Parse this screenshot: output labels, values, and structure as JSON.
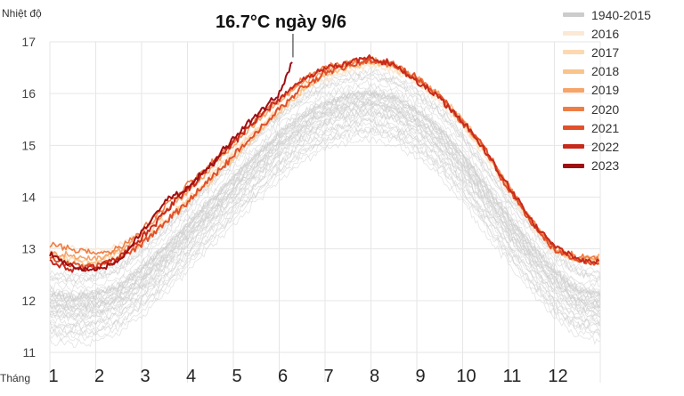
{
  "chart_data": {
    "type": "line",
    "title": "",
    "ylabel": "Nhiệt độ",
    "xlabel": "Tháng",
    "ylim": [
      11,
      17
    ],
    "yticks": [
      "11",
      "12",
      "13",
      "14",
      "15",
      "16",
      "17"
    ],
    "xticks": [
      "1",
      "2",
      "3",
      "4",
      "5",
      "6",
      "7",
      "8",
      "9",
      "10",
      "11",
      "12"
    ],
    "annotation": {
      "text": "16.7°C ngày 9/6",
      "month": 6.3,
      "value": 16.7
    },
    "series": [
      {
        "name": "1940-2015",
        "color": "#cccccc",
        "months": [
          1,
          1.5,
          2,
          2.5,
          3,
          3.5,
          4,
          4.5,
          5,
          5.5,
          6,
          6.5,
          7,
          7.5,
          8,
          8.5,
          9,
          9.5,
          10,
          10.5,
          11,
          11.5,
          12,
          12.5,
          13
        ],
        "values": [
          11.9,
          11.85,
          11.9,
          12.05,
          12.4,
          12.8,
          13.25,
          13.7,
          14.15,
          14.6,
          15.0,
          15.35,
          15.6,
          15.75,
          15.8,
          15.7,
          15.45,
          15.1,
          14.6,
          14.0,
          13.4,
          12.85,
          12.35,
          12.0,
          11.9
        ]
      },
      {
        "name": "2016",
        "color": "#fbe9d6",
        "months": [
          1,
          1.5,
          2,
          2.5,
          3,
          3.5,
          4,
          4.5,
          5,
          5.5,
          6,
          6.5,
          7,
          7.5,
          8,
          8.5,
          9,
          9.5,
          10,
          10.5,
          11,
          11.5,
          12,
          12.5,
          13
        ],
        "values": [
          13.05,
          13.0,
          12.95,
          13.05,
          13.3,
          13.7,
          14.1,
          14.5,
          14.9,
          15.3,
          15.7,
          16.05,
          16.3,
          16.45,
          16.55,
          16.45,
          16.2,
          15.85,
          15.35,
          14.8,
          14.1,
          13.45,
          12.9,
          12.8,
          12.85
        ]
      },
      {
        "name": "2017",
        "color": "#fcd9b0",
        "months": [
          1,
          1.5,
          2,
          2.5,
          3,
          3.5,
          4,
          4.5,
          5,
          5.5,
          6,
          6.5,
          7,
          7.5,
          8,
          8.5,
          9,
          9.5,
          10,
          10.5,
          11,
          11.5,
          12,
          12.5,
          13
        ],
        "values": [
          12.85,
          12.8,
          12.75,
          12.9,
          13.2,
          13.55,
          13.95,
          14.4,
          14.85,
          15.3,
          15.7,
          16.1,
          16.4,
          16.55,
          16.6,
          16.5,
          16.25,
          15.9,
          15.4,
          14.85,
          14.15,
          13.5,
          12.95,
          12.8,
          12.8
        ]
      },
      {
        "name": "2018",
        "color": "#f9c489",
        "months": [
          1,
          1.5,
          2,
          2.5,
          3,
          3.5,
          4,
          4.5,
          5,
          5.5,
          6,
          6.5,
          7,
          7.5,
          8,
          8.5,
          9,
          9.5,
          10,
          10.5,
          11,
          11.5,
          12,
          12.5,
          13
        ],
        "values": [
          12.9,
          12.75,
          12.7,
          12.85,
          13.1,
          13.5,
          13.9,
          14.3,
          14.75,
          15.2,
          15.65,
          16.05,
          16.35,
          16.5,
          16.6,
          16.55,
          16.3,
          15.95,
          15.5,
          14.9,
          14.2,
          13.55,
          13.0,
          12.8,
          12.75
        ]
      },
      {
        "name": "2019",
        "color": "#f6a46a",
        "months": [
          1,
          1.5,
          2,
          2.5,
          3,
          3.5,
          4,
          4.5,
          5,
          5.5,
          6,
          6.5,
          7,
          7.5,
          8,
          8.5,
          9,
          9.5,
          10,
          10.5,
          11,
          11.5,
          12,
          12.5,
          13
        ],
        "values": [
          12.95,
          12.85,
          12.8,
          12.95,
          13.3,
          13.7,
          14.1,
          14.55,
          15.0,
          15.45,
          15.85,
          16.2,
          16.45,
          16.6,
          16.65,
          16.55,
          16.3,
          15.95,
          15.45,
          14.9,
          14.2,
          13.55,
          13.0,
          12.8,
          12.85
        ]
      },
      {
        "name": "2020",
        "color": "#ee7d45",
        "months": [
          1,
          1.5,
          2,
          2.5,
          3,
          3.5,
          4,
          4.5,
          5,
          5.5,
          6,
          6.5,
          7,
          7.5,
          8,
          8.5,
          9,
          9.5,
          10,
          10.5,
          11,
          11.5,
          12,
          12.5,
          13
        ],
        "values": [
          13.1,
          13.0,
          12.9,
          13.0,
          13.35,
          13.8,
          14.25,
          14.65,
          15.05,
          15.5,
          15.9,
          16.25,
          16.5,
          16.6,
          16.65,
          16.55,
          16.3,
          15.95,
          15.45,
          14.9,
          14.2,
          13.55,
          13.0,
          12.85,
          12.8
        ]
      },
      {
        "name": "2021",
        "color": "#e0502b",
        "months": [
          1,
          1.5,
          2,
          2.5,
          3,
          3.5,
          4,
          4.5,
          5,
          5.5,
          6,
          6.5,
          7,
          7.5,
          8,
          8.5,
          9,
          9.5,
          10,
          10.5,
          11,
          11.5,
          12,
          12.5,
          13
        ],
        "values": [
          12.8,
          12.7,
          12.65,
          12.8,
          13.1,
          13.5,
          13.9,
          14.35,
          14.8,
          15.25,
          15.7,
          16.1,
          16.4,
          16.55,
          16.65,
          16.55,
          16.3,
          15.95,
          15.45,
          14.9,
          14.15,
          13.5,
          13.0,
          12.75,
          12.7
        ]
      },
      {
        "name": "2022",
        "color": "#c62a1c",
        "months": [
          1,
          1.5,
          2,
          2.5,
          3,
          3.5,
          4,
          4.5,
          5,
          5.5,
          6,
          6.5,
          7,
          7.5,
          8,
          8.5,
          9,
          9.5,
          10,
          10.5,
          11,
          11.5,
          12,
          12.5,
          13
        ],
        "values": [
          12.75,
          12.6,
          12.65,
          12.85,
          13.2,
          13.7,
          14.15,
          14.6,
          15.05,
          15.5,
          15.9,
          16.25,
          16.5,
          16.6,
          16.7,
          16.55,
          16.25,
          15.9,
          15.45,
          14.9,
          14.2,
          13.55,
          13.05,
          12.8,
          12.75
        ]
      },
      {
        "name": "2023",
        "color": "#9e0f12",
        "months": [
          1,
          1.5,
          2,
          2.5,
          3,
          3.5,
          4,
          4.5,
          5,
          5.5,
          6,
          6.1,
          6.2,
          6.3
        ],
        "values": [
          12.9,
          12.65,
          12.6,
          12.75,
          13.3,
          13.9,
          14.2,
          14.6,
          15.15,
          15.6,
          16.0,
          16.2,
          16.45,
          16.7
        ]
      }
    ]
  }
}
